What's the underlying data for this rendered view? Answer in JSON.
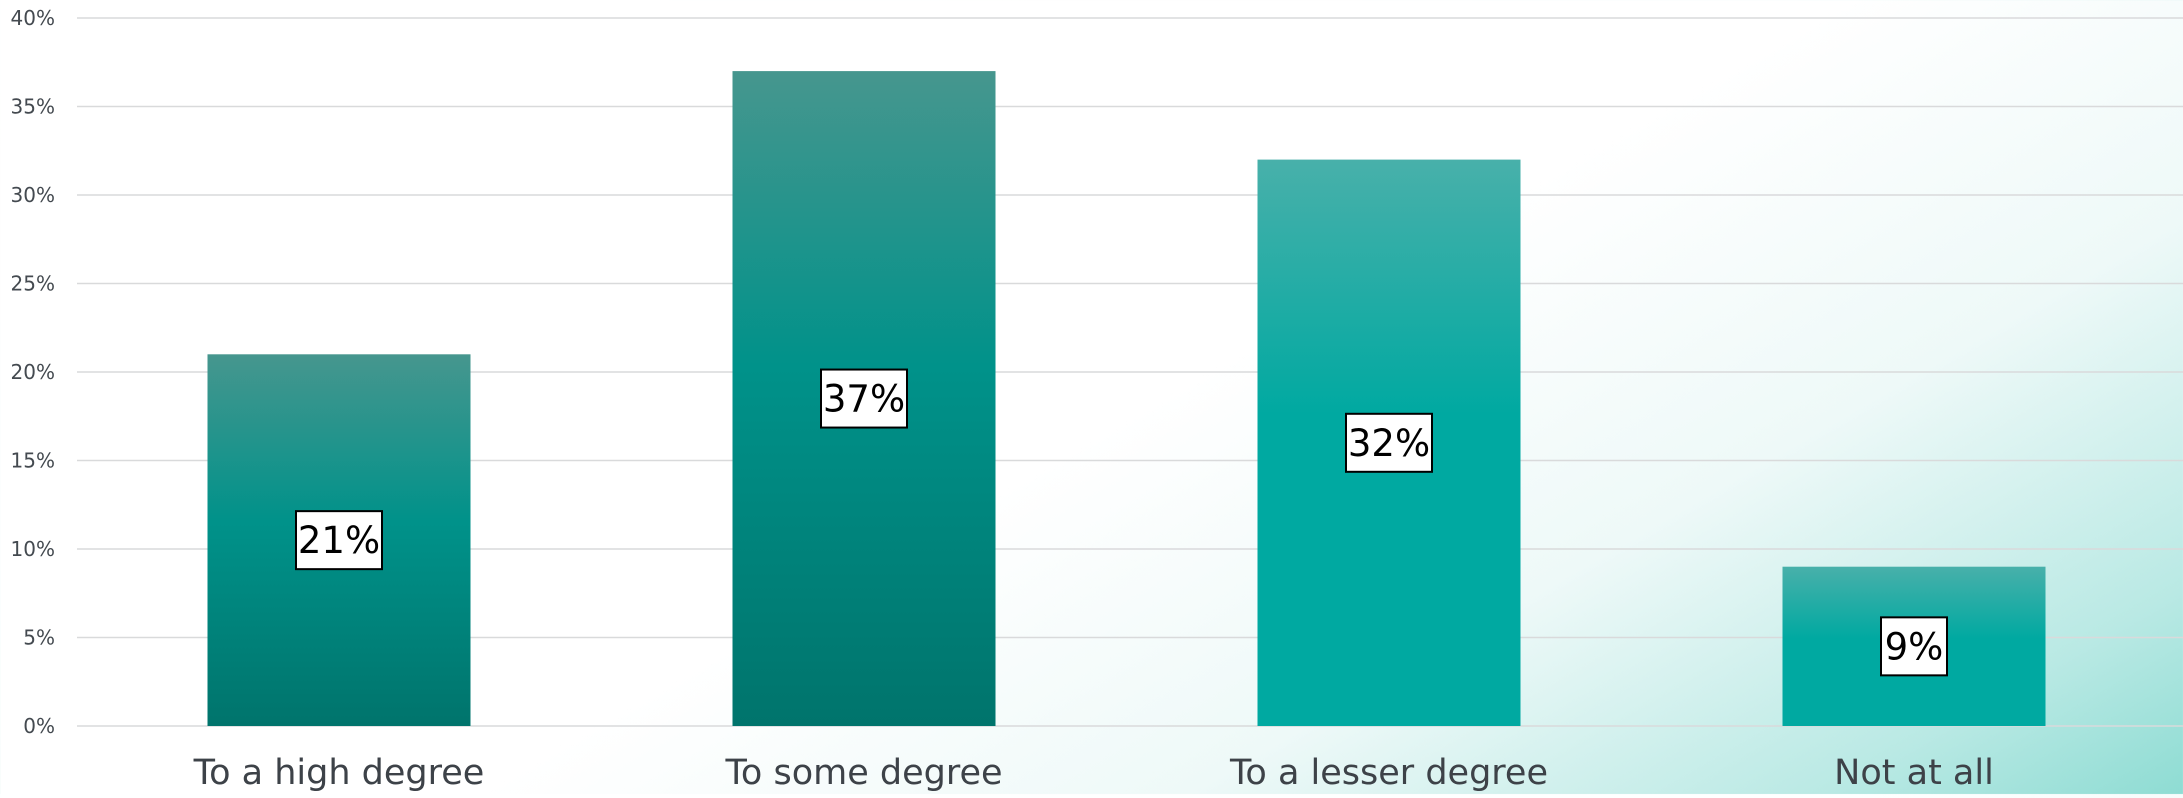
{
  "chart_data": {
    "type": "bar",
    "categories": [
      "To a high degree",
      "To some degree",
      "To a lesser degree",
      "Not at all"
    ],
    "values": [
      21,
      37,
      32,
      9
    ],
    "data_labels": [
      "21%",
      "37%",
      "32%",
      "9%"
    ],
    "y_ticks": [
      "0%",
      "5%",
      "10%",
      "15%",
      "20%",
      "25%",
      "30%",
      "35%",
      "40%"
    ],
    "ylim": [
      0,
      40
    ],
    "y_unit": "%",
    "grid": true,
    "legend": "none",
    "title": "",
    "xlabel": "",
    "ylabel": ""
  },
  "colors": {
    "bar_top": "#46968e",
    "bar_bottom": "#00746c",
    "bar_top_light": "#48b0aa",
    "bar_bottom_light": "#00a9a1",
    "gridline": "#d9dadb",
    "label_box_border": "#000000",
    "label_box_fill": "#ffffff"
  }
}
